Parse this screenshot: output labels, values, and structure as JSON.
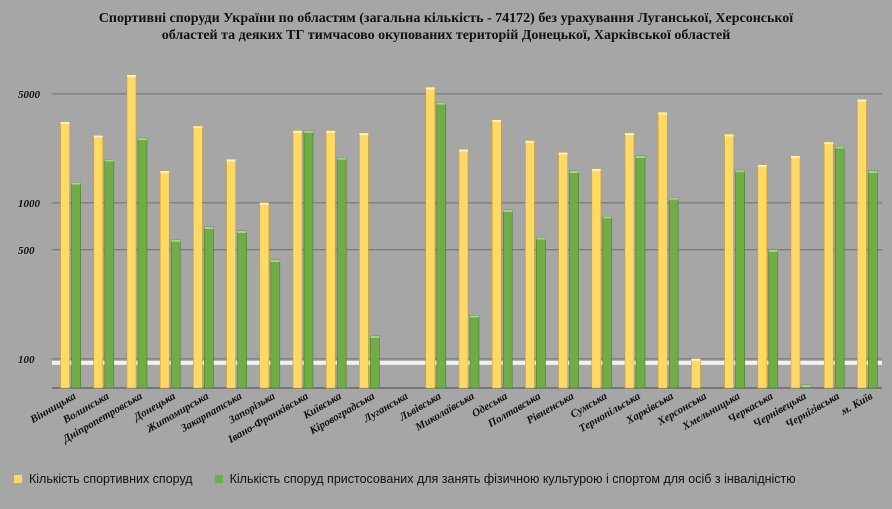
{
  "chart_data": {
    "type": "bar",
    "title_lines": [
      "Спортивні споруди України по областям (загальна кількість - 74172) без урахування Луганської, Херсонської",
      "областей та деяких ТГ тимчасово окупованих територій Донецької, Харківської областей"
    ],
    "y_scale": "log",
    "ylim": [
      65,
      8000
    ],
    "y_ticks": [
      100,
      500,
      1000,
      5000
    ],
    "y_tick_labels": [
      "100",
      "500",
      "1000",
      "5000"
    ],
    "grid": true,
    "legend_position": "bottom",
    "categories": [
      "Вінницька",
      "Волинська",
      "Дніпропетровська",
      "Донецька",
      "Житомирська",
      "Закарпатська",
      "Запорізька",
      "Івано-Франківська",
      "Київська",
      "Кіровоградська",
      "Луганська",
      "Львівська",
      "Миколаївська",
      "Одеська",
      "Полтавська",
      "Рівненська",
      "Сумська",
      "Тернопільська",
      "Харківська",
      "Херсонська",
      "Хмельницька",
      "Черкаська",
      "Чернівецька",
      "Чернігівська",
      "м. Київ"
    ],
    "series": [
      {
        "name": "Кількість спортивних споруд",
        "color": "#ffd966",
        "values": [
          3300,
          2700,
          6600,
          1600,
          3100,
          1900,
          1000,
          2900,
          2900,
          2800,
          null,
          5500,
          2200,
          3400,
          2500,
          2100,
          1650,
          2800,
          3800,
          100,
          2750,
          1750,
          2000,
          2450,
          4600
        ]
      },
      {
        "name": "Кількість споруд пристосованих для занять фізичною культурою і спортом для осіб з інвалідністю",
        "color": "#70ad47",
        "values": [
          1350,
          1900,
          2600,
          580,
          700,
          660,
          430,
          2900,
          1950,
          140,
          null,
          4400,
          190,
          900,
          600,
          1600,
          820,
          2000,
          1080,
          null,
          1620,
          500,
          68,
          2300,
          1600
        ]
      }
    ]
  }
}
